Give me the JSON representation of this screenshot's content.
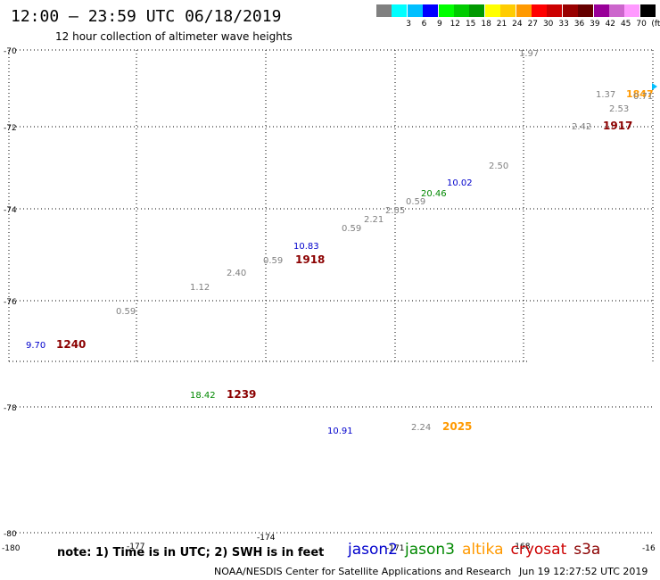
{
  "title": "12:00 — 23:59 UTC 06/18/2019",
  "subtitle": "12 hour collection of altimeter wave heights",
  "legend": {
    "unit": "(ft)",
    "items": [
      {
        "label": "",
        "color": "#808080"
      },
      {
        "label": "3",
        "color": "#00ffff"
      },
      {
        "label": "6",
        "color": "#00bfff"
      },
      {
        "label": "9",
        "color": "#0000ff"
      },
      {
        "label": "12",
        "color": "#00ff00"
      },
      {
        "label": "15",
        "color": "#00cc00"
      },
      {
        "label": "18",
        "color": "#009900"
      },
      {
        "label": "21",
        "color": "#ffff00"
      },
      {
        "label": "24",
        "color": "#ffcc00"
      },
      {
        "label": "27",
        "color": "#ff9900"
      },
      {
        "label": "30",
        "color": "#ff0000"
      },
      {
        "label": "33",
        "color": "#cc0000"
      },
      {
        "label": "36",
        "color": "#990000"
      },
      {
        "label": "39",
        "color": "#660000"
      },
      {
        "label": "42",
        "color": "#990099"
      },
      {
        "label": "45",
        "color": "#cc66cc"
      },
      {
        "label": "70",
        "color": "#ff99ff"
      },
      {
        "label": "",
        "color": "#000000"
      }
    ]
  },
  "axes": {
    "lat_labels": [
      "-70",
      "-72",
      "-74",
      "-76",
      "-78",
      "-80"
    ],
    "lon_labels": [
      "-180",
      "-177",
      "-174",
      "-171",
      "-168",
      "-16"
    ]
  },
  "wave_labels": [
    {
      "text": "1.97",
      "color": "#808080"
    },
    {
      "text": "1.37",
      "color": "#808080"
    },
    {
      "text": "1847",
      "color": "#ff9900"
    },
    {
      "text": "0.71",
      "color": "#808080"
    },
    {
      "text": "2.53",
      "color": "#808080"
    },
    {
      "text": "2.42",
      "color": "#808080"
    },
    {
      "text": "1917",
      "color": "#8b0000"
    },
    {
      "text": "2.50",
      "color": "#808080"
    },
    {
      "text": "10.02",
      "color": "#0000cc"
    },
    {
      "text": "20.46",
      "color": "#008800"
    },
    {
      "text": "0.59",
      "color": "#808080"
    },
    {
      "text": "2.55",
      "color": "#808080"
    },
    {
      "text": "2.21",
      "color": "#808080"
    },
    {
      "text": "0.59",
      "color": "#808080"
    },
    {
      "text": "10.83",
      "color": "#0000cc"
    },
    {
      "text": "0.59",
      "color": "#808080"
    },
    {
      "text": "1918",
      "color": "#8b0000"
    },
    {
      "text": "2.40",
      "color": "#808080"
    },
    {
      "text": "1.12",
      "color": "#808080"
    },
    {
      "text": "0.59",
      "color": "#808080"
    },
    {
      "text": "9.70",
      "color": "#0000cc"
    },
    {
      "text": "1240",
      "color": "#8b0000"
    },
    {
      "text": "18.42",
      "color": "#008800"
    },
    {
      "text": "1239",
      "color": "#8b0000"
    },
    {
      "text": "10.91",
      "color": "#0000cc"
    },
    {
      "text": "2.24",
      "color": "#808080"
    },
    {
      "text": "2025",
      "color": "#ff9900"
    }
  ],
  "note": "note: 1) Time is in UTC; 2) SWH is in feet",
  "satellites": [
    {
      "name": "jason2",
      "color": "#0000cc"
    },
    {
      "name": "jason3",
      "color": "#008800"
    },
    {
      "name": "altika",
      "color": "#ff9900"
    },
    {
      "name": "cryosat",
      "color": "#cc0000"
    },
    {
      "name": "s3a",
      "color": "#8b0000"
    }
  ],
  "credit": "NOAA/NESDIS Center for Satellite Applications and Research",
  "timestamp": "Jun 19 12:27:52 UTC 2019"
}
